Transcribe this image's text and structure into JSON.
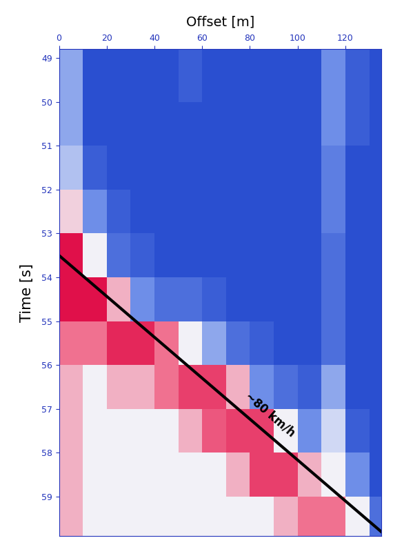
{
  "chart_data": {
    "type": "heatmap",
    "x_label": "Offset [m]",
    "y_label": "Time [s]",
    "xlim": [
      0,
      135
    ],
    "ylim": [
      59.9,
      48.8
    ],
    "xticks": [
      0,
      20,
      40,
      60,
      80,
      100,
      120
    ],
    "yticks": [
      49,
      50,
      51,
      52,
      53,
      54,
      55,
      56,
      57,
      58,
      59
    ],
    "x_edges": [
      0,
      10,
      20,
      30,
      40,
      50,
      60,
      70,
      80,
      90,
      100,
      110,
      120,
      130,
      135
    ],
    "y_edges": [
      48.8,
      50,
      51,
      52,
      53,
      54,
      55,
      56,
      57,
      58,
      59,
      59.9
    ],
    "cells": [
      [
        0.35,
        0.1,
        0.1,
        0.1,
        0.1,
        0.15,
        0.1,
        0.1,
        0.1,
        0.1,
        0.1,
        0.3,
        0.15,
        0.1
      ],
      [
        0.35,
        0.1,
        0.1,
        0.1,
        0.1,
        0.1,
        0.1,
        0.1,
        0.1,
        0.1,
        0.1,
        0.3,
        0.15,
        0.1
      ],
      [
        0.4,
        0.15,
        0.1,
        0.1,
        0.1,
        0.1,
        0.1,
        0.1,
        0.1,
        0.1,
        0.1,
        0.25,
        0.1,
        0.1
      ],
      [
        0.55,
        0.3,
        0.15,
        0.1,
        0.1,
        0.1,
        0.1,
        0.1,
        0.1,
        0.1,
        0.1,
        0.25,
        0.1,
        0.1
      ],
      [
        0.9,
        0.5,
        0.2,
        0.15,
        0.1,
        0.1,
        0.1,
        0.1,
        0.1,
        0.1,
        0.1,
        0.2,
        0.1,
        0.1
      ],
      [
        0.9,
        0.9,
        0.6,
        0.3,
        0.2,
        0.2,
        0.15,
        0.1,
        0.1,
        0.1,
        0.1,
        0.2,
        0.1,
        0.1
      ],
      [
        0.7,
        0.7,
        0.85,
        0.85,
        0.7,
        0.5,
        0.35,
        0.2,
        0.15,
        0.1,
        0.1,
        0.2,
        0.1,
        0.1
      ],
      [
        0.6,
        0.5,
        0.6,
        0.6,
        0.7,
        0.8,
        0.8,
        0.6,
        0.3,
        0.2,
        0.15,
        0.35,
        0.1,
        0.1
      ],
      [
        0.6,
        0.5,
        0.5,
        0.5,
        0.5,
        0.6,
        0.75,
        0.8,
        0.8,
        0.5,
        0.3,
        0.45,
        0.15,
        0.1
      ],
      [
        0.6,
        0.5,
        0.5,
        0.5,
        0.5,
        0.5,
        0.5,
        0.6,
        0.8,
        0.8,
        0.6,
        0.5,
        0.3,
        0.1
      ],
      [
        0.6,
        0.5,
        0.5,
        0.5,
        0.5,
        0.5,
        0.5,
        0.5,
        0.5,
        0.6,
        0.7,
        0.7,
        0.5,
        0.2
      ]
    ],
    "annotations": [
      {
        "text": "~80 km/h",
        "x": [
          0,
          135
        ],
        "y": [
          53.5,
          59.8
        ],
        "color": "#000000"
      }
    ],
    "tick_labels": true
  }
}
